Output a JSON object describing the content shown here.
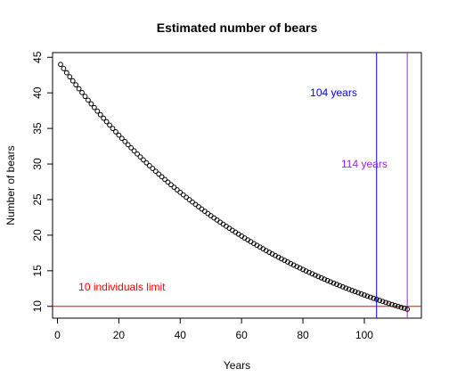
{
  "chart_data": {
    "type": "scatter",
    "title": "Estimated number of bears",
    "xlabel": "Years",
    "ylabel": "Number of bears",
    "xlim": [
      -1.6,
      118.6
    ],
    "ylim": [
      8.34,
      45.66
    ],
    "x_ticks": [
      0,
      20,
      40,
      60,
      80,
      100
    ],
    "y_ticks": [
      10,
      15,
      20,
      25,
      30,
      35,
      40,
      45
    ],
    "grid": false,
    "legend": "none",
    "series": [
      {
        "marker": "open-circle",
        "color": "#000000",
        "x_start": 1,
        "x_end": 114,
        "x_step": 1,
        "y_start": 44.0,
        "y_end": 9.6
      }
    ],
    "hlines": [
      {
        "y": 10,
        "color": "#ff0000"
      }
    ],
    "vlines": [
      {
        "x": 104,
        "color": "#0000ff"
      },
      {
        "x": 114,
        "color": "#a020f0"
      }
    ],
    "annotations": [
      {
        "text": "10 individuals limit",
        "x": 21,
        "y": 12.7,
        "color": "#ff0000"
      },
      {
        "text": "104 years",
        "x": 90,
        "y": 40,
        "color": "#0000ff"
      },
      {
        "text": "114 years",
        "x": 100,
        "y": 30,
        "color": "#a020f0"
      }
    ]
  }
}
